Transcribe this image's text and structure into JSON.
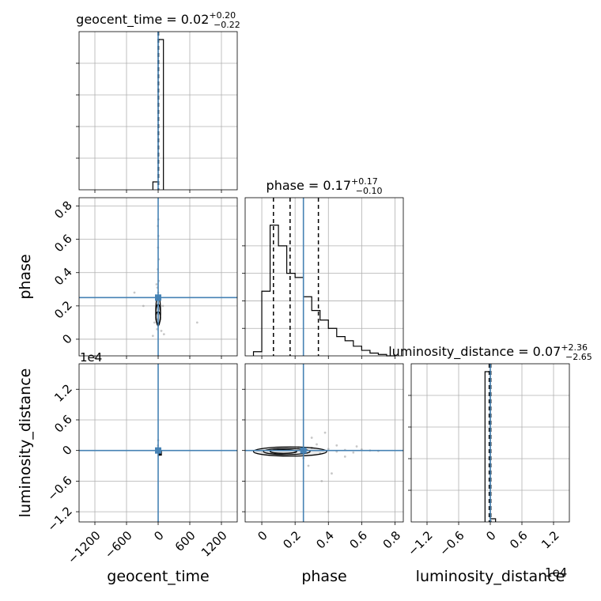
{
  "chart_data": [
    {
      "panel": "geocent_time-hist",
      "type": "bar",
      "title": {
        "param": "geocent_time",
        "median": "0.02",
        "upper": "+0.20",
        "lower": "−0.22"
      },
      "xlim": [
        -1500,
        1500
      ],
      "xticks": [
        -1200,
        -600,
        0,
        600,
        1200
      ],
      "bin_edges": [
        -100,
        0,
        100
      ],
      "counts": [
        0.05,
        0.95
      ],
      "ylim": [
        0,
        1.0
      ],
      "quantiles": [
        -1,
        2,
        8
      ],
      "truth": 0,
      "grid": true
    },
    {
      "panel": "phase-hist",
      "type": "bar",
      "title": {
        "param": "phase",
        "median": "0.17",
        "upper": "+0.17",
        "lower": "−0.10"
      },
      "xlim": [
        -0.1,
        0.85
      ],
      "xticks": [
        0.0,
        0.2,
        0.4,
        0.6,
        0.8
      ],
      "bin_edges": [
        -0.05,
        0.0,
        0.05,
        0.1,
        0.15,
        0.2,
        0.25,
        0.3,
        0.35,
        0.4,
        0.45,
        0.5,
        0.55,
        0.6,
        0.65,
        0.7,
        0.75,
        0.8
      ],
      "counts": [
        0.03,
        0.47,
        0.95,
        0.8,
        0.6,
        0.57,
        0.43,
        0.33,
        0.26,
        0.2,
        0.14,
        0.11,
        0.07,
        0.04,
        0.02,
        0.01,
        0.0
      ],
      "ylim": [
        0,
        1.15
      ],
      "quantiles": [
        0.07,
        0.17,
        0.34
      ],
      "truth": 0.25,
      "grid": true
    },
    {
      "panel": "luminosity_distance-hist",
      "type": "bar",
      "title": {
        "param": "luminosity_distance",
        "median": "0.07",
        "upper": "+2.36",
        "lower": "−2.65"
      },
      "xlim": [
        -1.5,
        1.5
      ],
      "xticks": [
        -1.2,
        -0.6,
        0.0,
        0.6,
        1.2
      ],
      "xlabel_scale": "1e4",
      "bin_edges": [
        -0.1,
        0.0,
        0.1
      ],
      "counts": [
        0.95,
        0.02
      ],
      "ylim": [
        0,
        1.0
      ],
      "quantiles": [
        -0.02,
        0.0,
        0.01
      ],
      "truth": 0.0,
      "grid": true
    },
    {
      "panel": "phase-vs-geocent_time",
      "type": "scatter",
      "xlim": [
        -1500,
        1500
      ],
      "ylim": [
        -0.1,
        0.85
      ],
      "yticks": [
        0.0,
        0.2,
        0.4,
        0.6,
        0.8
      ],
      "ylabel": "phase",
      "truth": [
        0,
        0.25
      ],
      "points": [
        [
          -20,
          0.06
        ],
        [
          10,
          0.09
        ],
        [
          -10,
          0.12
        ],
        [
          5,
          0.15
        ],
        [
          20,
          0.18
        ],
        [
          -5,
          0.21
        ],
        [
          15,
          0.24
        ],
        [
          0,
          0.28
        ],
        [
          -15,
          0.31
        ],
        [
          10,
          0.35
        ],
        [
          -8,
          0.42
        ],
        [
          12,
          0.48
        ],
        [
          -3,
          0.55
        ],
        [
          4,
          0.62
        ],
        [
          -6,
          0.68
        ],
        [
          2,
          0.72
        ],
        [
          60,
          0.05
        ],
        [
          -70,
          0.1
        ],
        [
          90,
          0.2
        ],
        [
          -280,
          0.2
        ],
        [
          -450,
          0.28
        ],
        [
          740,
          0.1
        ],
        [
          -100,
          0.02
        ],
        [
          110,
          0.03
        ],
        [
          -30,
          0.33
        ]
      ],
      "contours": [
        [
          0,
          0.17,
          40,
          0.09
        ],
        [
          0,
          0.15,
          25,
          0.06
        ],
        [
          0,
          0.13,
          12,
          0.035
        ]
      ]
    },
    {
      "panel": "luminosity_distance-vs-geocent_time",
      "type": "scatter",
      "xlim": [
        -1500,
        1500
      ],
      "ylim": [
        -1.4,
        1.7
      ],
      "yticks": [
        -1.2,
        -0.6,
        0.0,
        0.6,
        1.2
      ],
      "ylabel": "luminosity_distance",
      "y_scale": "1e4",
      "truth": [
        0,
        0.0
      ],
      "points": [
        [
          -10,
          0.05
        ],
        [
          10,
          -0.05
        ],
        [
          0,
          0.2
        ],
        [
          5,
          -0.1
        ],
        [
          -5,
          0.1
        ],
        [
          20,
          -0.04
        ],
        [
          -25,
          0.02
        ]
      ],
      "block": [
        0,
        70,
        -0.1,
        0.0
      ]
    },
    {
      "panel": "luminosity_distance-vs-phase",
      "type": "scatter",
      "xlim": [
        -0.1,
        0.85
      ],
      "ylim": [
        -1.4,
        1.7
      ],
      "truth": [
        0.25,
        0.0
      ],
      "points": [
        [
          0.1,
          0.02
        ],
        [
          0.2,
          -0.03
        ],
        [
          0.3,
          0.05
        ],
        [
          0.35,
          -0.06
        ],
        [
          0.4,
          0.03
        ],
        [
          0.45,
          -0.02
        ],
        [
          0.5,
          0.01
        ],
        [
          0.55,
          -0.04
        ],
        [
          0.6,
          0.02
        ],
        [
          0.65,
          0.0
        ],
        [
          0.7,
          -0.01
        ],
        [
          0.3,
          0.25
        ],
        [
          0.38,
          0.35
        ],
        [
          0.28,
          -0.3
        ],
        [
          0.42,
          -0.45
        ],
        [
          0.36,
          -0.6
        ],
        [
          0.45,
          0.1
        ],
        [
          0.25,
          -0.15
        ],
        [
          0.33,
          0.12
        ],
        [
          0.5,
          -0.12
        ],
        [
          0.57,
          0.08
        ],
        [
          0.22,
          0.06
        ],
        [
          0.4,
          -1.2
        ]
      ],
      "contours": [
        [
          0.17,
          -0.02,
          0.22,
          0.09
        ],
        [
          0.15,
          -0.02,
          0.14,
          0.06
        ],
        [
          0.13,
          -0.02,
          0.08,
          0.035
        ]
      ]
    }
  ],
  "axis_labels": {
    "geocent_time": "geocent_time",
    "phase": "phase",
    "luminosity_distance": "luminosity_distance"
  },
  "offset_labels": {
    "left": "1e4",
    "bottom": "1e4"
  },
  "colors": {
    "truth": "#4682b4",
    "line": "#000000",
    "grid": "#b0b0b0",
    "points": "#9a9a9a"
  }
}
